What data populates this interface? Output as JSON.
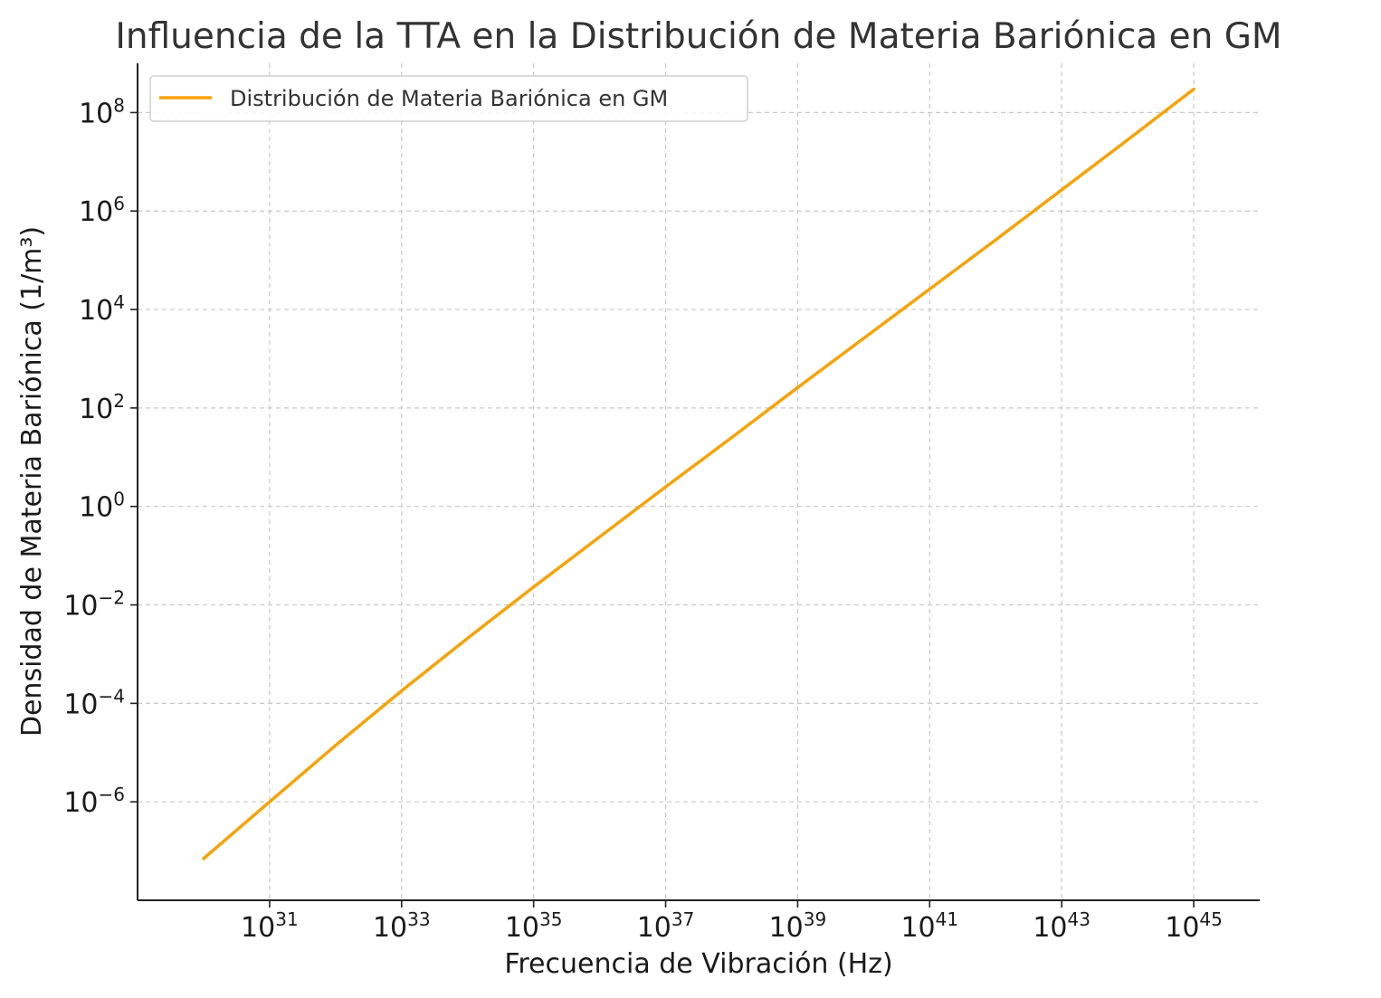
{
  "chart_data": {
    "type": "line",
    "title": "Influencia de la TTA en la Distribución de Materia Bariónica en GM",
    "xlabel": "Frecuencia de Vibración (Hz)",
    "ylabel": "Densidad de Materia Bariónica (1/m³)",
    "xscale": "log",
    "yscale": "log",
    "xlim": [
      1e+29,
      1e+46
    ],
    "ylim": [
      1e-08,
      1000000000.0
    ],
    "grid": true,
    "legend_position": "top-left",
    "x_ticks": [
      {
        "value": 1e+31,
        "base": "10",
        "exp": "31"
      },
      {
        "value": 1e+33,
        "base": "10",
        "exp": "33"
      },
      {
        "value": 1e+35,
        "base": "10",
        "exp": "35"
      },
      {
        "value": 1e+37,
        "base": "10",
        "exp": "37"
      },
      {
        "value": 1e+39,
        "base": "10",
        "exp": "39"
      },
      {
        "value": 1e+41,
        "base": "10",
        "exp": "41"
      },
      {
        "value": 1e+43,
        "base": "10",
        "exp": "43"
      },
      {
        "value": 1e+45,
        "base": "10",
        "exp": "45"
      }
    ],
    "y_ticks": [
      {
        "value": 1e-06,
        "base": "10",
        "exp": "−6"
      },
      {
        "value": 0.0001,
        "base": "10",
        "exp": "−4"
      },
      {
        "value": 0.01,
        "base": "10",
        "exp": "−2"
      },
      {
        "value": 1.0,
        "base": "10",
        "exp": "0"
      },
      {
        "value": 100.0,
        "base": "10",
        "exp": "2"
      },
      {
        "value": 10000.0,
        "base": "10",
        "exp": "4"
      },
      {
        "value": 1000000.0,
        "base": "10",
        "exp": "6"
      },
      {
        "value": 100000000.0,
        "base": "10",
        "exp": "8"
      }
    ],
    "series": [
      {
        "name": "Distribución de Materia Bariónica en GM",
        "color": "#f5a30a",
        "x": [
          1e+30,
          1e+31,
          1e+32,
          1e+33,
          1e+34,
          1e+35,
          1e+36,
          1e+37,
          1e+38,
          1e+39,
          1e+40,
          1e+41,
          1e+42,
          1e+43,
          1e+44,
          1e+45
        ],
        "y": [
          7e-08,
          1e-06,
          1.4e-05,
          0.00018,
          0.0021,
          0.023,
          0.24,
          2.5,
          25,
          260,
          2600,
          26000,
          260000.0,
          2700000.0,
          28000000.0,
          300000000.0
        ]
      }
    ]
  }
}
